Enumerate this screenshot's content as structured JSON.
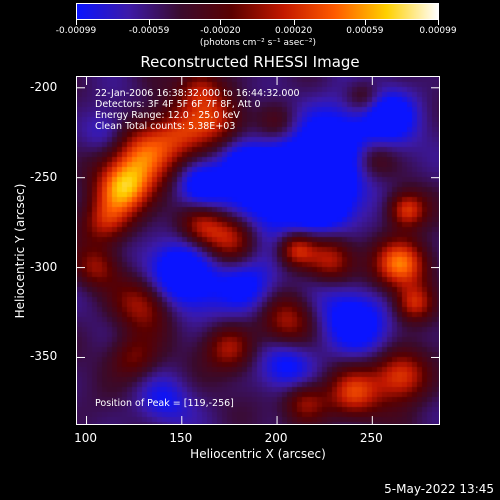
{
  "colorbar": {
    "colors": [
      "#0a14ff",
      "#3d1aa8",
      "#3a0b2e",
      "#5a0000",
      "#c21800",
      "#ff5a00",
      "#ffd000",
      "#ffffff"
    ],
    "ticks": [
      "-0.00099",
      "-0.00059",
      "-0.00020",
      "0.00020",
      "0.00059",
      "0.00099"
    ],
    "tick_values": [
      -0.00099,
      -0.00059,
      -0.0002,
      0.0002,
      0.00059,
      0.00099
    ],
    "range": [
      -0.00099,
      0.00099
    ],
    "unit_label": "(photons cm⁻² s⁻¹ asec⁻²)"
  },
  "chart_data": {
    "type": "heatmap",
    "title": "Reconstructed RHESSI Image",
    "xlabel": "Heliocentric X (arcsec)",
    "ylabel": "Heliocentric Y (arcsec)",
    "xlim": [
      95,
      285
    ],
    "ylim": [
      -387,
      -194
    ],
    "xticks": [
      100,
      150,
      200,
      250
    ],
    "yticks": [
      -200,
      -250,
      -300,
      -350
    ],
    "grid": false,
    "peak": {
      "x": 119,
      "y": -256
    }
  },
  "info_lines": [
    "22-Jan-2006 16:38:32.000 to 16:44:32.000",
    "Detectors: 3F 4F 5F 6F 7F 8F, Att 0",
    "Energy Range: 12.0 - 25.0 keV",
    "Clean     Total counts: 5.38E+03"
  ],
  "peak_label": "Position of Peak = [119,-256]",
  "timestamp": "5-May-2022 13:45"
}
